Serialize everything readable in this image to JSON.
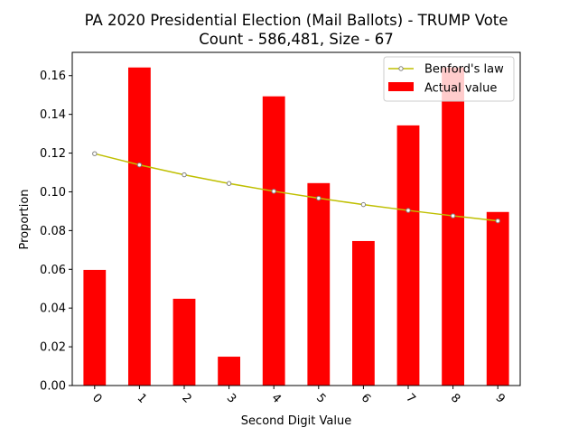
{
  "chart_data": {
    "type": "bar",
    "title_line1": "PA 2020 Presidential Election (Mail Ballots) - TRUMP Vote",
    "title_line2": "Count - 586,481, Size - 67",
    "xlabel": "Second Digit Value",
    "ylabel": "Proportion",
    "categories": [
      "0",
      "1",
      "2",
      "3",
      "4",
      "5",
      "6",
      "7",
      "8",
      "9"
    ],
    "ylim": [
      0,
      0.172
    ],
    "yticks": [
      0.0,
      0.02,
      0.04,
      0.06,
      0.08,
      0.1,
      0.12,
      0.14,
      0.16
    ],
    "ytick_labels": [
      "0.00",
      "0.02",
      "0.04",
      "0.06",
      "0.08",
      "0.10",
      "0.12",
      "0.14",
      "0.16"
    ],
    "grid": false,
    "legend_position": "top-right",
    "series": [
      {
        "name": "Benford's law",
        "type": "line",
        "color": "#bfbf00",
        "marker_color": "#808080",
        "values": [
          0.1197,
          0.1139,
          0.1088,
          0.1043,
          0.1003,
          0.0967,
          0.0934,
          0.0904,
          0.0876,
          0.085
        ]
      },
      {
        "name": "Actual value",
        "type": "bar",
        "color": "#ff0000",
        "values": [
          0.0597,
          0.1642,
          0.0448,
          0.0149,
          0.1493,
          0.1045,
          0.0746,
          0.1343,
          0.1642,
          0.0896
        ]
      }
    ]
  }
}
